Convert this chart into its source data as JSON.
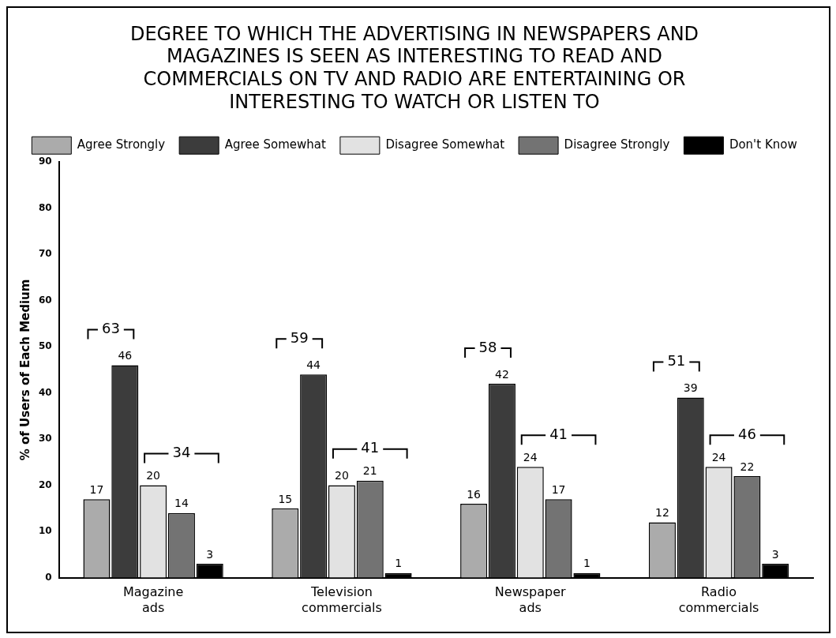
{
  "chart_data": {
    "type": "bar",
    "title": "DEGREE TO WHICH THE ADVERTISING IN NEWSPAPERS AND MAGAZINES IS SEEN AS INTERESTING TO READ AND COMMERCIALS ON TV AND RADIO ARE ENTERTAINING OR INTERESTING TO WATCH OR LISTEN TO",
    "ylabel": "% of Users of Each Medium",
    "categories": [
      "Magazine ads",
      "Television commercials",
      "Newspaper ads",
      "Radio commercials"
    ],
    "series": [
      {
        "name": "Agree Strongly",
        "color": "#ababab",
        "values": [
          17,
          15,
          16,
          12
        ]
      },
      {
        "name": "Agree Somewhat",
        "color": "#3c3c3c",
        "values": [
          46,
          44,
          42,
          39
        ]
      },
      {
        "name": "Disagree Somewhat",
        "color": "#e2e2e2",
        "values": [
          20,
          20,
          24,
          24
        ]
      },
      {
        "name": "Disagree Strongly",
        "color": "#737373",
        "values": [
          14,
          21,
          17,
          22
        ]
      },
      {
        "name": "Don't Know",
        "color": "#000000",
        "values": [
          3,
          1,
          1,
          3
        ]
      }
    ],
    "ylim": [
      0,
      90
    ],
    "yticks": [
      0,
      10,
      20,
      30,
      40,
      50,
      60,
      70,
      80,
      90
    ],
    "grid": false,
    "legend": "top",
    "data_labels": true,
    "annotations": [
      "63",
      "34",
      "59",
      "41",
      "58",
      "41",
      "51",
      "46"
    ]
  }
}
